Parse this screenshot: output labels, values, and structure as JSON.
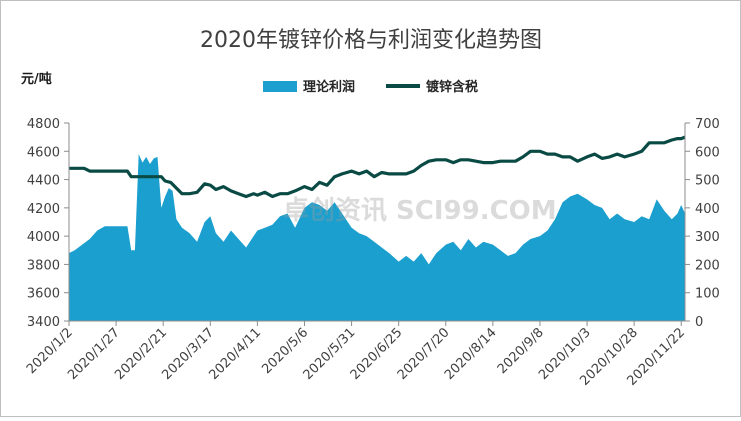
{
  "chart_data": {
    "type": "area+line",
    "title": "2020年镀锌价格与利润变化趋势图",
    "ylabel_left": "元/吨",
    "y_left_range": [
      3400,
      4800
    ],
    "y_right_range": [
      0,
      700
    ],
    "y_left_ticks": [
      3400,
      3600,
      3800,
      4000,
      4200,
      4400,
      4600,
      4800
    ],
    "y_right_ticks": [
      0,
      100,
      200,
      300,
      400,
      500,
      600,
      700
    ],
    "x_tick_labels": [
      "2020/1/2",
      "2020/1/27",
      "2020/2/21",
      "2020/3/17",
      "2020/4/11",
      "2020/5/6",
      "2020/5/31",
      "2020/6/25",
      "2020/7/20",
      "2020/8/14",
      "2020/9/8",
      "2020/10/3",
      "2020/10/28",
      "2020/11/22"
    ],
    "legend_position": "top-center",
    "grid": false,
    "watermark": "卓创资讯 SCI99.COM",
    "series": [
      {
        "name": "理论利润",
        "kind": "area",
        "axis": "right",
        "color": "#1a9fcf",
        "points": [
          [
            "2020/1/2",
            240
          ],
          [
            "2020/1/5",
            250
          ],
          [
            "2020/1/9",
            270
          ],
          [
            "2020/1/13",
            290
          ],
          [
            "2020/1/17",
            320
          ],
          [
            "2020/1/21",
            335
          ],
          [
            "2020/1/27",
            335
          ],
          [
            "2020/2/2",
            335
          ],
          [
            "2020/2/4",
            250
          ],
          [
            "2020/2/6",
            250
          ],
          [
            "2020/2/8",
            590
          ],
          [
            "2020/2/10",
            560
          ],
          [
            "2020/2/12",
            580
          ],
          [
            "2020/2/14",
            555
          ],
          [
            "2020/2/16",
            575
          ],
          [
            "2020/2/18",
            580
          ],
          [
            "2020/2/20",
            400
          ],
          [
            "2020/2/22",
            440
          ],
          [
            "2020/2/24",
            470
          ],
          [
            "2020/2/26",
            460
          ],
          [
            "2020/2/28",
            360
          ],
          [
            "2020/3/2",
            330
          ],
          [
            "2020/3/6",
            310
          ],
          [
            "2020/3/10",
            280
          ],
          [
            "2020/3/14",
            350
          ],
          [
            "2020/3/17",
            370
          ],
          [
            "2020/3/20",
            310
          ],
          [
            "2020/3/24",
            280
          ],
          [
            "2020/3/28",
            320
          ],
          [
            "2020/4/1",
            290
          ],
          [
            "2020/4/5",
            260
          ],
          [
            "2020/4/9",
            300
          ],
          [
            "2020/4/11",
            320
          ],
          [
            "2020/4/15",
            330
          ],
          [
            "2020/4/19",
            340
          ],
          [
            "2020/4/23",
            370
          ],
          [
            "2020/4/27",
            380
          ],
          [
            "2020/5/1",
            330
          ],
          [
            "2020/5/6",
            400
          ],
          [
            "2020/5/10",
            420
          ],
          [
            "2020/5/14",
            410
          ],
          [
            "2020/5/18",
            390
          ],
          [
            "2020/5/22",
            420
          ],
          [
            "2020/5/26",
            380
          ],
          [
            "2020/5/31",
            330
          ],
          [
            "2020/6/4",
            310
          ],
          [
            "2020/6/8",
            300
          ],
          [
            "2020/6/12",
            280
          ],
          [
            "2020/6/16",
            260
          ],
          [
            "2020/6/20",
            240
          ],
          [
            "2020/6/25",
            210
          ],
          [
            "2020/6/29",
            230
          ],
          [
            "2020/7/3",
            210
          ],
          [
            "2020/7/7",
            240
          ],
          [
            "2020/7/11",
            200
          ],
          [
            "2020/7/15",
            240
          ],
          [
            "2020/7/20",
            270
          ],
          [
            "2020/7/24",
            280
          ],
          [
            "2020/7/28",
            250
          ],
          [
            "2020/8/1",
            290
          ],
          [
            "2020/8/5",
            260
          ],
          [
            "2020/8/9",
            280
          ],
          [
            "2020/8/14",
            270
          ],
          [
            "2020/8/18",
            250
          ],
          [
            "2020/8/22",
            230
          ],
          [
            "2020/8/26",
            240
          ],
          [
            "2020/8/30",
            270
          ],
          [
            "2020/9/3",
            290
          ],
          [
            "2020/9/8",
            300
          ],
          [
            "2020/9/12",
            320
          ],
          [
            "2020/9/16",
            360
          ],
          [
            "2020/9/20",
            420
          ],
          [
            "2020/9/24",
            440
          ],
          [
            "2020/9/28",
            450
          ],
          [
            "2020/10/3",
            430
          ],
          [
            "2020/10/7",
            410
          ],
          [
            "2020/10/11",
            400
          ],
          [
            "2020/10/15",
            360
          ],
          [
            "2020/10/19",
            380
          ],
          [
            "2020/10/23",
            360
          ],
          [
            "2020/10/28",
            350
          ],
          [
            "2020/11/1",
            370
          ],
          [
            "2020/11/5",
            360
          ],
          [
            "2020/11/9",
            430
          ],
          [
            "2020/11/13",
            390
          ],
          [
            "2020/11/17",
            360
          ],
          [
            "2020/11/20",
            380
          ],
          [
            "2020/11/22",
            410
          ],
          [
            "2020/11/24",
            380
          ]
        ]
      },
      {
        "name": "镀锌含税",
        "kind": "line",
        "axis": "left",
        "color": "#0a4a44",
        "points": [
          [
            "2020/1/2",
            4480
          ],
          [
            "2020/1/10",
            4480
          ],
          [
            "2020/1/13",
            4460
          ],
          [
            "2020/1/27",
            4460
          ],
          [
            "2020/2/2",
            4460
          ],
          [
            "2020/2/4",
            4420
          ],
          [
            "2020/2/14",
            4420
          ],
          [
            "2020/2/20",
            4420
          ],
          [
            "2020/2/22",
            4390
          ],
          [
            "2020/2/25",
            4380
          ],
          [
            "2020/2/28",
            4340
          ],
          [
            "2020/3/2",
            4300
          ],
          [
            "2020/3/6",
            4300
          ],
          [
            "2020/3/10",
            4310
          ],
          [
            "2020/3/14",
            4370
          ],
          [
            "2020/3/17",
            4360
          ],
          [
            "2020/3/20",
            4330
          ],
          [
            "2020/3/24",
            4350
          ],
          [
            "2020/3/28",
            4320
          ],
          [
            "2020/4/1",
            4300
          ],
          [
            "2020/4/5",
            4280
          ],
          [
            "2020/4/9",
            4300
          ],
          [
            "2020/4/11",
            4290
          ],
          [
            "2020/4/15",
            4310
          ],
          [
            "2020/4/19",
            4280
          ],
          [
            "2020/4/23",
            4300
          ],
          [
            "2020/4/27",
            4300
          ],
          [
            "2020/5/1",
            4320
          ],
          [
            "2020/5/6",
            4350
          ],
          [
            "2020/5/10",
            4330
          ],
          [
            "2020/5/14",
            4380
          ],
          [
            "2020/5/18",
            4360
          ],
          [
            "2020/5/22",
            4420
          ],
          [
            "2020/5/26",
            4440
          ],
          [
            "2020/5/31",
            4460
          ],
          [
            "2020/6/4",
            4440
          ],
          [
            "2020/6/8",
            4460
          ],
          [
            "2020/6/12",
            4420
          ],
          [
            "2020/6/16",
            4450
          ],
          [
            "2020/6/20",
            4440
          ],
          [
            "2020/6/25",
            4440
          ],
          [
            "2020/6/29",
            4440
          ],
          [
            "2020/7/3",
            4460
          ],
          [
            "2020/7/7",
            4500
          ],
          [
            "2020/7/11",
            4530
          ],
          [
            "2020/7/15",
            4540
          ],
          [
            "2020/7/20",
            4540
          ],
          [
            "2020/7/24",
            4520
          ],
          [
            "2020/7/28",
            4540
          ],
          [
            "2020/8/1",
            4540
          ],
          [
            "2020/8/5",
            4530
          ],
          [
            "2020/8/9",
            4520
          ],
          [
            "2020/8/14",
            4520
          ],
          [
            "2020/8/18",
            4530
          ],
          [
            "2020/8/22",
            4530
          ],
          [
            "2020/8/26",
            4530
          ],
          [
            "2020/8/30",
            4560
          ],
          [
            "2020/9/3",
            4600
          ],
          [
            "2020/9/8",
            4600
          ],
          [
            "2020/9/12",
            4580
          ],
          [
            "2020/9/16",
            4580
          ],
          [
            "2020/9/20",
            4560
          ],
          [
            "2020/9/24",
            4560
          ],
          [
            "2020/9/28",
            4530
          ],
          [
            "2020/10/3",
            4560
          ],
          [
            "2020/10/7",
            4580
          ],
          [
            "2020/10/11",
            4550
          ],
          [
            "2020/10/15",
            4560
          ],
          [
            "2020/10/19",
            4580
          ],
          [
            "2020/10/23",
            4560
          ],
          [
            "2020/10/28",
            4580
          ],
          [
            "2020/11/1",
            4600
          ],
          [
            "2020/11/5",
            4660
          ],
          [
            "2020/11/9",
            4660
          ],
          [
            "2020/11/13",
            4660
          ],
          [
            "2020/11/17",
            4680
          ],
          [
            "2020/11/20",
            4690
          ],
          [
            "2020/11/22",
            4690
          ],
          [
            "2020/11/24",
            4700
          ]
        ]
      }
    ]
  }
}
